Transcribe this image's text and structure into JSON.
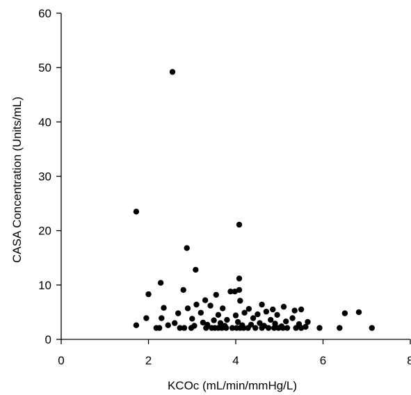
{
  "chart_data": {
    "type": "scatter",
    "title": "",
    "xlabel": "KCOc (mL/min/mmHg/L)",
    "ylabel": "CASA Concentration (Units/mL)",
    "xlim": [
      0,
      8
    ],
    "ylim": [
      0,
      60
    ],
    "xticks": [
      0,
      2,
      4,
      6,
      8
    ],
    "yticks": [
      0,
      10,
      20,
      30,
      40,
      50,
      60
    ],
    "grid": false,
    "legend": "none",
    "marker_color": "#000000",
    "series": [
      {
        "points": [
          [
            2.55,
            49.2
          ],
          [
            1.72,
            23.5
          ],
          [
            4.08,
            21.1
          ],
          [
            2.88,
            16.8
          ],
          [
            3.08,
            12.8
          ],
          [
            4.08,
            11.2
          ],
          [
            2.28,
            10.4
          ],
          [
            2.0,
            8.3
          ],
          [
            2.8,
            9.1
          ],
          [
            3.88,
            8.8
          ],
          [
            3.98,
            8.8
          ],
          [
            4.08,
            9.1
          ],
          [
            3.55,
            8.2
          ],
          [
            3.3,
            7.2
          ],
          [
            4.1,
            7.1
          ],
          [
            3.1,
            6.4
          ],
          [
            3.42,
            6.2
          ],
          [
            4.6,
            6.4
          ],
          [
            5.1,
            6.0
          ],
          [
            2.35,
            5.8
          ],
          [
            2.9,
            5.7
          ],
          [
            3.7,
            5.7
          ],
          [
            4.3,
            5.6
          ],
          [
            4.85,
            5.5
          ],
          [
            5.35,
            5.3
          ],
          [
            5.5,
            5.5
          ],
          [
            6.5,
            4.8
          ],
          [
            6.82,
            5.0
          ],
          [
            2.68,
            4.8
          ],
          [
            3.2,
            4.9
          ],
          [
            3.6,
            4.5
          ],
          [
            4.0,
            4.4
          ],
          [
            4.2,
            4.9
          ],
          [
            4.5,
            4.6
          ],
          [
            4.7,
            5.1
          ],
          [
            4.95,
            4.5
          ],
          [
            5.3,
            3.9
          ],
          [
            5.65,
            3.2
          ],
          [
            1.95,
            3.9
          ],
          [
            2.3,
            3.9
          ],
          [
            3.0,
            3.8
          ],
          [
            3.5,
            3.5
          ],
          [
            3.8,
            3.6
          ],
          [
            4.4,
            3.9
          ],
          [
            4.8,
            3.6
          ],
          [
            5.15,
            3.3
          ],
          [
            2.6,
            3.0
          ],
          [
            3.25,
            3.1
          ],
          [
            3.65,
            3.0
          ],
          [
            4.05,
            3.2
          ],
          [
            4.55,
            3.0
          ],
          [
            4.9,
            2.9
          ],
          [
            5.45,
            2.8
          ],
          [
            1.72,
            2.6
          ],
          [
            2.45,
            2.6
          ],
          [
            3.05,
            2.5
          ],
          [
            3.35,
            2.7
          ],
          [
            3.75,
            2.5
          ],
          [
            4.15,
            2.6
          ],
          [
            4.35,
            2.7
          ],
          [
            4.65,
            2.5
          ],
          [
            5.05,
            2.4
          ],
          [
            5.6,
            2.3
          ],
          [
            2.18,
            2.1
          ],
          [
            2.25,
            2.1
          ],
          [
            2.72,
            2.1
          ],
          [
            2.82,
            2.1
          ],
          [
            2.98,
            2.1
          ],
          [
            3.32,
            2.1
          ],
          [
            3.45,
            2.1
          ],
          [
            3.52,
            2.1
          ],
          [
            3.6,
            2.1
          ],
          [
            3.68,
            2.1
          ],
          [
            3.78,
            2.1
          ],
          [
            3.92,
            2.1
          ],
          [
            4.02,
            2.1
          ],
          [
            4.1,
            2.1
          ],
          [
            4.18,
            2.1
          ],
          [
            4.28,
            2.1
          ],
          [
            4.45,
            2.1
          ],
          [
            4.6,
            2.1
          ],
          [
            4.75,
            2.1
          ],
          [
            4.88,
            2.1
          ],
          [
            4.98,
            2.1
          ],
          [
            5.08,
            2.1
          ],
          [
            5.18,
            2.1
          ],
          [
            5.38,
            2.1
          ],
          [
            5.5,
            2.1
          ],
          [
            5.92,
            2.1
          ],
          [
            6.38,
            2.1
          ],
          [
            7.12,
            2.1
          ]
        ]
      }
    ]
  }
}
